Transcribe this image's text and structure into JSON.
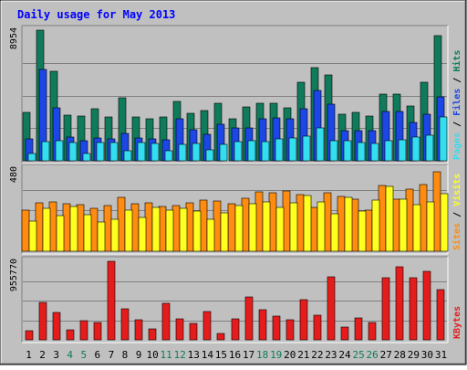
{
  "chart_data": {
    "type": "bar",
    "title": "Daily usage for May 2013",
    "categories": [
      "1",
      "2",
      "3",
      "4",
      "5",
      "6",
      "7",
      "8",
      "9",
      "10",
      "11",
      "12",
      "13",
      "14",
      "15",
      "16",
      "17",
      "18",
      "19",
      "20",
      "21",
      "22",
      "23",
      "24",
      "25",
      "26",
      "27",
      "28",
      "29",
      "30",
      "31"
    ],
    "weekend_days": [
      "4",
      "5",
      "11",
      "12",
      "18",
      "19",
      "25",
      "26"
    ],
    "panels": [
      {
        "name": "pages-files-hits",
        "ymax_label": "8954",
        "ylim": [
          0,
          8954
        ],
        "legend": [
          "Pages",
          "Files",
          "Hits"
        ],
        "series": [
          {
            "name": "Hits",
            "color": "#107b5a",
            "values": [
              3289,
              8954,
              6154,
              3162,
              3058,
              3578,
              3004,
              4296,
              3035,
              2868,
              2994,
              4094,
              3263,
              3456,
              3967,
              2850,
              3707,
              3958,
              3916,
              3656,
              5365,
              6395,
              5897,
              3200,
              3324,
              3051,
              4579,
              4600,
              3750,
              5360,
              8609
            ]
          },
          {
            "name": "Files",
            "color": "#1c46e6",
            "values": [
              1489,
              6270,
              3650,
              1617,
              1407,
              1550,
              1497,
              1906,
              1550,
              1530,
              1452,
              2851,
              2135,
              1806,
              2490,
              2264,
              2261,
              2859,
              2916,
              2878,
              3562,
              4838,
              3911,
              2092,
              2050,
              2083,
              3408,
              3406,
              2643,
              3187,
              4377
            ]
          },
          {
            "name": "Pages",
            "color": "#32def0",
            "values": [
              514,
              1302,
              1372,
              1282,
              511,
              1234,
              1265,
              712,
              1274,
              1201,
              705,
              1127,
              1178,
              764,
              1155,
              1294,
              1383,
              1328,
              1487,
              1576,
              1680,
              2225,
              1355,
              1361,
              1279,
              1209,
              1373,
              1425,
              1606,
              1763,
              3010
            ]
          }
        ]
      },
      {
        "name": "sites-visits",
        "ymax_label": "480",
        "ylim": [
          0,
          480
        ],
        "legend": [
          "Sites",
          "Visits"
        ],
        "series": [
          {
            "name": "Visits",
            "color": "#ff8c10",
            "values": [
              238,
              285,
              290,
              279,
              272,
              251,
              268,
              317,
              275,
              281,
              263,
              267,
              282,
              296,
              291,
              277,
              307,
              349,
              339,
              350,
              330,
              255,
              339,
              318,
              304,
              241,
              382,
              304,
              362,
              388,
              463
            ]
          },
          {
            "name": "Sites",
            "color": "#ffff20",
            "values": [
              175,
              252,
              210,
              259,
              212,
              172,
              184,
              238,
              196,
              254,
              239,
              251,
              234,
              189,
              225,
              269,
              278,
              286,
              258,
              284,
              325,
              290,
              221,
              312,
              232,
              296,
              379,
              305,
              273,
              289,
              335
            ]
          }
        ]
      },
      {
        "name": "kbytes",
        "ymax_label": "955770",
        "ylim": [
          0,
          955770
        ],
        "legend": [
          "KBytes"
        ],
        "series": [
          {
            "name": "KBytes",
            "color": "#e61c1c",
            "values": [
              106000,
              460000,
              338000,
              122000,
              232000,
              216000,
              955770,
              380000,
              246000,
              134000,
              439000,
              261000,
              202000,
              342000,
              74000,
              259000,
              524000,
              364000,
              286000,
              243000,
              486000,
              297000,
              766000,
              152000,
              264000,
              206000,
              752000,
              885000,
              751000,
              832000,
              614000
            ]
          }
        ]
      }
    ]
  }
}
